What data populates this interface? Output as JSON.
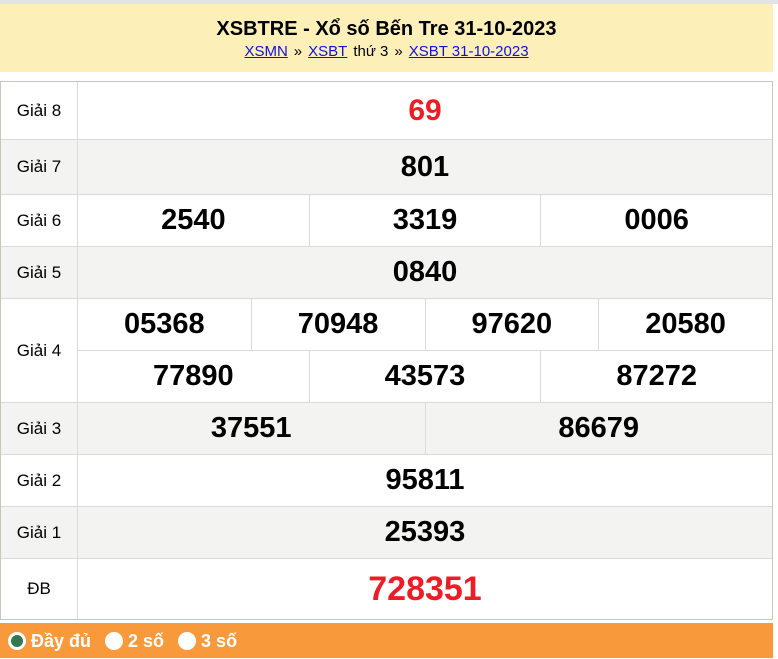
{
  "header": {
    "title": "XSBTRE - Xổ số Bến Tre 31-10-2023",
    "breadcrumb": [
      {
        "type": "link",
        "label": "XSMN"
      },
      {
        "type": "sep",
        "label": "»"
      },
      {
        "type": "link",
        "label": "XSBT"
      },
      {
        "type": "text",
        "label": "thứ 3"
      },
      {
        "type": "sep",
        "label": "»"
      },
      {
        "type": "link",
        "label": "XSBT 31-10-2023"
      }
    ]
  },
  "results": {
    "rows": [
      {
        "label": "Giải 8",
        "highlight": true,
        "groups": [
          [
            "69"
          ]
        ]
      },
      {
        "label": "Giải 7",
        "highlight": false,
        "groups": [
          [
            "801"
          ]
        ]
      },
      {
        "label": "Giải 6",
        "highlight": false,
        "groups": [
          [
            "2540",
            "3319",
            "0006"
          ]
        ]
      },
      {
        "label": "Giải 5",
        "highlight": false,
        "groups": [
          [
            "0840"
          ]
        ]
      },
      {
        "label": "Giải 4",
        "highlight": false,
        "groups": [
          [
            "05368",
            "70948",
            "97620",
            "20580"
          ],
          [
            "77890",
            "43573",
            "87272"
          ]
        ]
      },
      {
        "label": "Giải 3",
        "highlight": false,
        "groups": [
          [
            "37551",
            "86679"
          ]
        ]
      },
      {
        "label": "Giải 2",
        "highlight": false,
        "groups": [
          [
            "95811"
          ]
        ]
      },
      {
        "label": "Giải 1",
        "highlight": false,
        "groups": [
          [
            "25393"
          ]
        ]
      },
      {
        "label": "ĐB",
        "highlight": true,
        "groups": [
          [
            "728351"
          ]
        ]
      }
    ]
  },
  "footer": {
    "options": [
      {
        "label": "Đầy đủ",
        "selected": true
      },
      {
        "label": "2 số",
        "selected": false
      },
      {
        "label": "3 số",
        "selected": false
      }
    ]
  },
  "colors": {
    "accent_red": "#EE1C25",
    "header_bg": "#FCF0B8",
    "footer_bg": "#F89A3C",
    "link_blue": "#1111DD",
    "radio_selected_green": "#35764E",
    "row_alt_bg": "#F3F3F1"
  }
}
